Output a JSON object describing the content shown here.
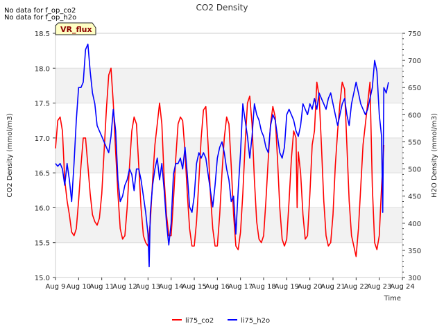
{
  "chart_data": {
    "type": "line",
    "title": "CO2 Density",
    "notes": [
      "No data for f_op_co2",
      "No data for f_op_h2o"
    ],
    "badge": "VR_flux",
    "xlabel": "Time",
    "ylabel_left": "CO2 Density (mmol/m3)",
    "ylabel_right": "H2O Density (mmol/m3)",
    "categories": [
      "Aug 9",
      "Aug 10",
      "Aug 11",
      "Aug 12",
      "Aug 13",
      "Aug 14",
      "Aug 15",
      "Aug 16",
      "Aug 17",
      "Aug 18",
      "Aug 19",
      "Aug 20",
      "Aug 21",
      "Aug 22",
      "Aug 23",
      "Aug 24"
    ],
    "xlim": [
      9,
      24
    ],
    "ylim_left": [
      15.0,
      18.5
    ],
    "ylim_right": [
      300,
      750
    ],
    "yticks_left": [
      "15.0",
      "15.5",
      "16.0",
      "16.5",
      "17.0",
      "17.5",
      "18.0",
      "18.5"
    ],
    "yticks_right": [
      "300",
      "350",
      "400",
      "450",
      "500",
      "550",
      "600",
      "650",
      "700",
      "750"
    ],
    "grid": true,
    "legend_position": "bottom-center",
    "series": [
      {
        "name": "li75_co2",
        "axis": "left",
        "color": "#ff0000",
        "points": [
          [
            9.0,
            16.85
          ],
          [
            9.1,
            17.25
          ],
          [
            9.2,
            17.3
          ],
          [
            9.3,
            17.1
          ],
          [
            9.4,
            16.4
          ],
          [
            9.5,
            16.1
          ],
          [
            9.6,
            15.9
          ],
          [
            9.7,
            15.65
          ],
          [
            9.8,
            15.6
          ],
          [
            9.9,
            15.7
          ],
          [
            10.0,
            16.1
          ],
          [
            10.1,
            16.6
          ],
          [
            10.2,
            17.0
          ],
          [
            10.3,
            17.0
          ],
          [
            10.4,
            16.6
          ],
          [
            10.5,
            16.2
          ],
          [
            10.6,
            15.9
          ],
          [
            10.7,
            15.8
          ],
          [
            10.8,
            15.75
          ],
          [
            10.9,
            15.85
          ],
          [
            11.0,
            16.2
          ],
          [
            11.1,
            16.8
          ],
          [
            11.2,
            17.4
          ],
          [
            11.3,
            17.9
          ],
          [
            11.4,
            18.0
          ],
          [
            11.5,
            17.5
          ],
          [
            11.6,
            16.8
          ],
          [
            11.7,
            16.2
          ],
          [
            11.8,
            15.7
          ],
          [
            11.9,
            15.55
          ],
          [
            12.0,
            15.6
          ],
          [
            12.1,
            16.0
          ],
          [
            12.2,
            16.6
          ],
          [
            12.3,
            17.1
          ],
          [
            12.4,
            17.3
          ],
          [
            12.5,
            17.2
          ],
          [
            12.6,
            16.6
          ],
          [
            12.7,
            16.0
          ],
          [
            12.8,
            15.6
          ],
          [
            12.9,
            15.5
          ],
          [
            13.0,
            15.45
          ],
          [
            13.1,
            15.8
          ],
          [
            13.2,
            16.4
          ],
          [
            13.3,
            16.9
          ],
          [
            13.4,
            17.2
          ],
          [
            13.5,
            17.5
          ],
          [
            13.6,
            17.2
          ],
          [
            13.7,
            16.4
          ],
          [
            13.8,
            15.9
          ],
          [
            13.9,
            15.6
          ],
          [
            14.0,
            15.6
          ],
          [
            14.1,
            16.1
          ],
          [
            14.2,
            16.7
          ],
          [
            14.3,
            17.2
          ],
          [
            14.4,
            17.3
          ],
          [
            14.5,
            17.25
          ],
          [
            14.6,
            16.8
          ],
          [
            14.7,
            16.2
          ],
          [
            14.8,
            15.7
          ],
          [
            14.9,
            15.45
          ],
          [
            15.0,
            15.45
          ],
          [
            15.1,
            15.8
          ],
          [
            15.2,
            16.4
          ],
          [
            15.3,
            17.0
          ],
          [
            15.4,
            17.4
          ],
          [
            15.5,
            17.45
          ],
          [
            15.6,
            16.9
          ],
          [
            15.7,
            16.2
          ],
          [
            15.8,
            15.7
          ],
          [
            15.9,
            15.45
          ],
          [
            16.0,
            15.45
          ],
          [
            16.1,
            15.9
          ],
          [
            16.2,
            16.5
          ],
          [
            16.3,
            17.0
          ],
          [
            16.4,
            17.3
          ],
          [
            16.5,
            17.2
          ],
          [
            16.6,
            16.6
          ],
          [
            16.7,
            15.9
          ],
          [
            16.8,
            15.45
          ],
          [
            16.9,
            15.4
          ],
          [
            17.0,
            15.65
          ],
          [
            17.1,
            16.2
          ],
          [
            17.2,
            16.9
          ],
          [
            17.3,
            17.5
          ],
          [
            17.4,
            17.6
          ],
          [
            17.5,
            17.2
          ],
          [
            17.6,
            16.4
          ],
          [
            17.7,
            15.8
          ],
          [
            17.8,
            15.55
          ],
          [
            17.9,
            15.5
          ],
          [
            18.0,
            15.6
          ],
          [
            18.1,
            16.1
          ],
          [
            18.2,
            16.7
          ],
          [
            18.3,
            17.2
          ],
          [
            18.4,
            17.45
          ],
          [
            18.5,
            17.3
          ],
          [
            18.6,
            16.7
          ],
          [
            18.7,
            16.0
          ],
          [
            18.8,
            15.55
          ],
          [
            18.9,
            15.45
          ],
          [
            19.0,
            15.55
          ],
          [
            19.1,
            16.1
          ],
          [
            19.2,
            16.7
          ],
          [
            19.3,
            17.1
          ],
          [
            19.4,
            17.0
          ],
          [
            19.45,
            16.0
          ],
          [
            19.5,
            16.8
          ],
          [
            19.6,
            16.5
          ],
          [
            19.7,
            15.9
          ],
          [
            19.8,
            15.55
          ],
          [
            19.9,
            15.6
          ],
          [
            20.0,
            16.2
          ],
          [
            20.1,
            16.9
          ],
          [
            20.2,
            17.1
          ],
          [
            20.3,
            17.8
          ],
          [
            20.4,
            17.6
          ],
          [
            20.5,
            16.9
          ],
          [
            20.6,
            16.1
          ],
          [
            20.7,
            15.6
          ],
          [
            20.8,
            15.45
          ],
          [
            20.9,
            15.5
          ],
          [
            21.0,
            15.9
          ],
          [
            21.1,
            16.6
          ],
          [
            21.2,
            17.1
          ],
          [
            21.3,
            17.5
          ],
          [
            21.4,
            17.8
          ],
          [
            21.5,
            17.7
          ],
          [
            21.6,
            16.9
          ],
          [
            21.7,
            16.1
          ],
          [
            21.8,
            15.6
          ],
          [
            21.9,
            15.45
          ],
          [
            22.0,
            15.3
          ],
          [
            22.1,
            15.7
          ],
          [
            22.2,
            16.3
          ],
          [
            22.3,
            16.9
          ],
          [
            22.4,
            17.2
          ],
          [
            22.5,
            17.5
          ],
          [
            22.6,
            17.8
          ],
          [
            22.7,
            16.3
          ],
          [
            22.8,
            15.5
          ],
          [
            22.9,
            15.4
          ],
          [
            23.0,
            15.6
          ],
          [
            23.1,
            16.3
          ],
          [
            23.2,
            16.9
          ]
        ]
      },
      {
        "name": "li75_h2o",
        "axis": "right",
        "color": "#0000ff",
        "points": [
          [
            9.0,
            510
          ],
          [
            9.1,
            505
          ],
          [
            9.2,
            510
          ],
          [
            9.3,
            500
          ],
          [
            9.4,
            470
          ],
          [
            9.5,
            510
          ],
          [
            9.6,
            480
          ],
          [
            9.7,
            440
          ],
          [
            9.8,
            510
          ],
          [
            9.9,
            590
          ],
          [
            10.0,
            650
          ],
          [
            10.1,
            650
          ],
          [
            10.2,
            660
          ],
          [
            10.3,
            720
          ],
          [
            10.4,
            730
          ],
          [
            10.5,
            680
          ],
          [
            10.6,
            640
          ],
          [
            10.7,
            620
          ],
          [
            10.8,
            580
          ],
          [
            10.9,
            570
          ],
          [
            11.0,
            560
          ],
          [
            11.1,
            550
          ],
          [
            11.2,
            540
          ],
          [
            11.3,
            530
          ],
          [
            11.4,
            560
          ],
          [
            11.5,
            610
          ],
          [
            11.6,
            570
          ],
          [
            11.7,
            480
          ],
          [
            11.8,
            440
          ],
          [
            11.9,
            450
          ],
          [
            12.0,
            470
          ],
          [
            12.1,
            480
          ],
          [
            12.2,
            500
          ],
          [
            12.3,
            490
          ],
          [
            12.4,
            460
          ],
          [
            12.5,
            500
          ],
          [
            12.6,
            500
          ],
          [
            12.7,
            480
          ],
          [
            12.8,
            450
          ],
          [
            12.9,
            420
          ],
          [
            13.0,
            380
          ],
          [
            13.05,
            320
          ],
          [
            13.1,
            420
          ],
          [
            13.2,
            470
          ],
          [
            13.3,
            500
          ],
          [
            13.4,
            520
          ],
          [
            13.5,
            480
          ],
          [
            13.6,
            510
          ],
          [
            13.7,
            460
          ],
          [
            13.8,
            400
          ],
          [
            13.9,
            360
          ],
          [
            14.0,
            400
          ],
          [
            14.1,
            490
          ],
          [
            14.2,
            510
          ],
          [
            14.3,
            510
          ],
          [
            14.4,
            520
          ],
          [
            14.5,
            500
          ],
          [
            14.6,
            540
          ],
          [
            14.7,
            490
          ],
          [
            14.8,
            430
          ],
          [
            14.9,
            420
          ],
          [
            15.0,
            450
          ],
          [
            15.1,
            510
          ],
          [
            15.2,
            530
          ],
          [
            15.3,
            520
          ],
          [
            15.4,
            530
          ],
          [
            15.5,
            520
          ],
          [
            15.6,
            490
          ],
          [
            15.7,
            460
          ],
          [
            15.8,
            430
          ],
          [
            15.9,
            470
          ],
          [
            16.0,
            520
          ],
          [
            16.1,
            540
          ],
          [
            16.2,
            550
          ],
          [
            16.3,
            530
          ],
          [
            16.4,
            500
          ],
          [
            16.5,
            480
          ],
          [
            16.6,
            440
          ],
          [
            16.7,
            450
          ],
          [
            16.8,
            380
          ],
          [
            16.9,
            460
          ],
          [
            17.0,
            530
          ],
          [
            17.1,
            620
          ],
          [
            17.2,
            590
          ],
          [
            17.3,
            560
          ],
          [
            17.4,
            520
          ],
          [
            17.5,
            560
          ],
          [
            17.6,
            620
          ],
          [
            17.7,
            600
          ],
          [
            17.8,
            590
          ],
          [
            17.9,
            570
          ],
          [
            18.0,
            560
          ],
          [
            18.1,
            540
          ],
          [
            18.2,
            530
          ],
          [
            18.3,
            580
          ],
          [
            18.4,
            600
          ],
          [
            18.5,
            590
          ],
          [
            18.6,
            560
          ],
          [
            18.7,
            530
          ],
          [
            18.8,
            520
          ],
          [
            18.9,
            540
          ],
          [
            19.0,
            600
          ],
          [
            19.1,
            610
          ],
          [
            19.2,
            600
          ],
          [
            19.3,
            590
          ],
          [
            19.4,
            570
          ],
          [
            19.5,
            560
          ],
          [
            19.6,
            580
          ],
          [
            19.7,
            620
          ],
          [
            19.8,
            610
          ],
          [
            19.9,
            600
          ],
          [
            20.0,
            620
          ],
          [
            20.1,
            610
          ],
          [
            20.2,
            630
          ],
          [
            20.3,
            610
          ],
          [
            20.4,
            640
          ],
          [
            20.5,
            630
          ],
          [
            20.6,
            620
          ],
          [
            20.7,
            610
          ],
          [
            20.8,
            630
          ],
          [
            20.9,
            640
          ],
          [
            21.0,
            620
          ],
          [
            21.1,
            600
          ],
          [
            21.2,
            580
          ],
          [
            21.3,
            600
          ],
          [
            21.4,
            620
          ],
          [
            21.5,
            630
          ],
          [
            21.6,
            600
          ],
          [
            21.7,
            580
          ],
          [
            21.8,
            620
          ],
          [
            21.9,
            640
          ],
          [
            22.0,
            660
          ],
          [
            22.1,
            640
          ],
          [
            22.2,
            620
          ],
          [
            22.3,
            610
          ],
          [
            22.4,
            600
          ],
          [
            22.5,
            610
          ],
          [
            22.6,
            630
          ],
          [
            22.7,
            650
          ],
          [
            22.8,
            700
          ],
          [
            22.9,
            680
          ],
          [
            23.0,
            600
          ],
          [
            23.1,
            560
          ],
          [
            23.15,
            420
          ],
          [
            23.2,
            650
          ],
          [
            23.3,
            640
          ],
          [
            23.4,
            660
          ]
        ]
      }
    ]
  }
}
